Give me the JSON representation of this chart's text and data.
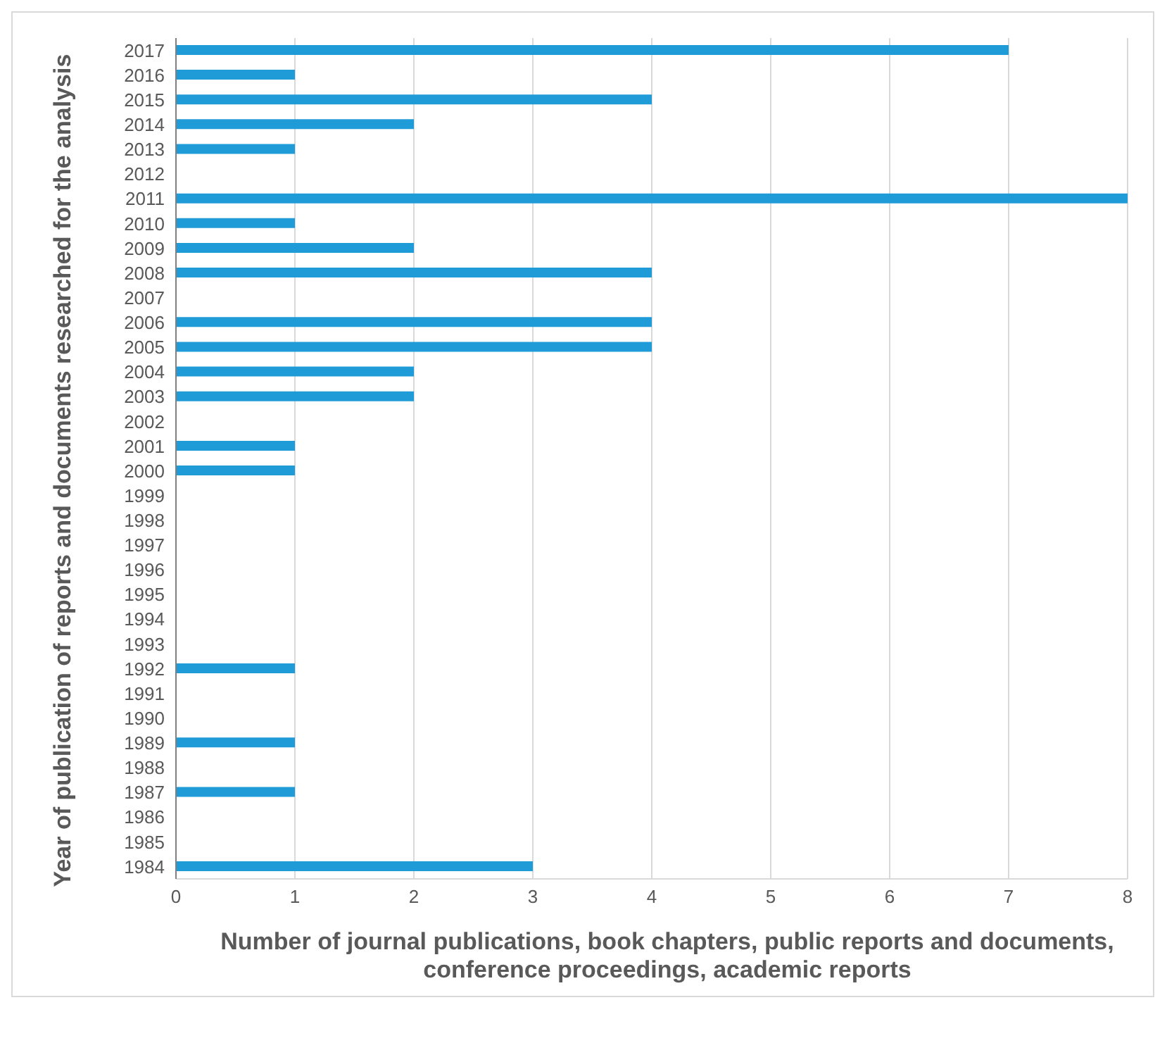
{
  "chart_data": {
    "type": "bar",
    "orientation": "horizontal",
    "xlabel": "Number of journal publications, book chapters, public reports and documents, conference proceedings, academic reports",
    "ylabel": "Year of publication of reports and documents  researched for the analysis",
    "categories": [
      "2017",
      "2016",
      "2015",
      "2014",
      "2013",
      "2012",
      "2011",
      "2010",
      "2009",
      "2008",
      "2007",
      "2006",
      "2005",
      "2004",
      "2003",
      "2002",
      "2001",
      "2000",
      "1999",
      "1998",
      "1997",
      "1996",
      "1995",
      "1994",
      "1993",
      "1992",
      "1991",
      "1990",
      "1989",
      "1988",
      "1987",
      "1986",
      "1985",
      "1984"
    ],
    "values": [
      7,
      1,
      4,
      2,
      1,
      0,
      8,
      1,
      2,
      4,
      0,
      4,
      4,
      2,
      2,
      0,
      1,
      1,
      0,
      0,
      0,
      0,
      0,
      0,
      0,
      1,
      0,
      0,
      1,
      0,
      1,
      0,
      0,
      3
    ],
    "color": "#1f9bd7",
    "xlim": [
      0,
      8
    ],
    "xticks": [
      0,
      1,
      2,
      3,
      4,
      5,
      6,
      7,
      8
    ],
    "grid": "x",
    "legend": false
  }
}
